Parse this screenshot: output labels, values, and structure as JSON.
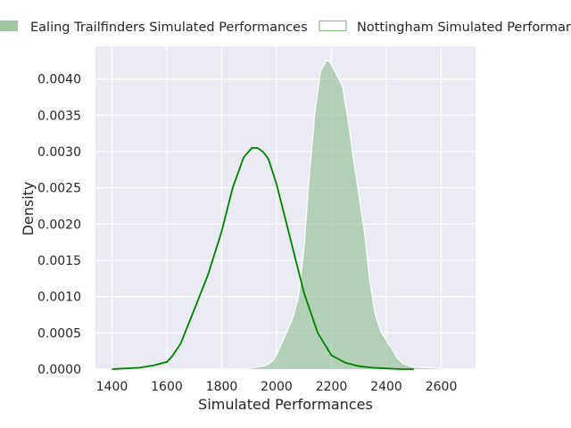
{
  "chart_data": {
    "type": "area",
    "xlabel": "Simulated Performances",
    "ylabel": "Density",
    "xlim": [
      1340,
      2725
    ],
    "ylim": [
      0,
      0.00445
    ],
    "x_ticks": [
      1400,
      1600,
      1800,
      2000,
      2200,
      2400,
      2600
    ],
    "x_tick_labels": [
      "1400",
      "1600",
      "1800",
      "2000",
      "2200",
      "2400",
      "2600"
    ],
    "y_ticks": [
      0,
      0.0005,
      0.001,
      0.0015,
      0.002,
      0.0025,
      0.003,
      0.0035,
      0.004
    ],
    "y_tick_labels": [
      "0.0000",
      "0.0005",
      "0.0010",
      "0.0015",
      "0.0020",
      "0.0025",
      "0.0030",
      "0.0035",
      "0.0040"
    ],
    "grid": true,
    "legend_position": "top",
    "series": [
      {
        "name": "Ealing Trailfinders Simulated Performances",
        "style": "filled",
        "color": "#8fbc8f",
        "edge_color": "#ffffff",
        "x": [
          1830,
          1900,
          1960,
          1985,
          2000,
          2030,
          2060,
          2080,
          2100,
          2120,
          2140,
          2160,
          2180,
          2190,
          2200,
          2220,
          2240,
          2260,
          2280,
          2300,
          2320,
          2340,
          2360,
          2380,
          2400,
          2420,
          2440,
          2460,
          2480,
          2500,
          2550,
          2600,
          2650,
          2680
        ],
        "y": [
          0.0,
          1e-05,
          5e-05,
          0.00011,
          0.0002,
          0.00045,
          0.00072,
          0.001,
          0.00168,
          0.0027,
          0.00355,
          0.0041,
          0.00425,
          0.00425,
          0.0042,
          0.00405,
          0.0039,
          0.00345,
          0.0029,
          0.0024,
          0.0019,
          0.0012,
          0.00075,
          0.00052,
          0.0004,
          0.00028,
          0.00015,
          8e-05,
          5e-05,
          3e-05,
          2e-05,
          1e-05,
          0.0,
          0.0
        ]
      },
      {
        "name": "Nottingham Simulated Performances",
        "style": "line",
        "color": "#008000",
        "x": [
          1400,
          1450,
          1500,
          1550,
          1600,
          1620,
          1650,
          1700,
          1750,
          1800,
          1840,
          1880,
          1910,
          1930,
          1950,
          1970,
          2000,
          2050,
          2100,
          2150,
          2200,
          2250,
          2300,
          2350,
          2400,
          2450,
          2500
        ],
        "y": [
          0.0,
          1e-05,
          2e-05,
          5e-05,
          0.0001,
          0.00018,
          0.00035,
          0.00082,
          0.0013,
          0.0019,
          0.0025,
          0.00292,
          0.00305,
          0.00305,
          0.003,
          0.0029,
          0.00255,
          0.0018,
          0.00105,
          0.0005,
          0.00019,
          9e-05,
          4e-05,
          2e-05,
          1e-05,
          0.0,
          0.0
        ]
      }
    ]
  }
}
